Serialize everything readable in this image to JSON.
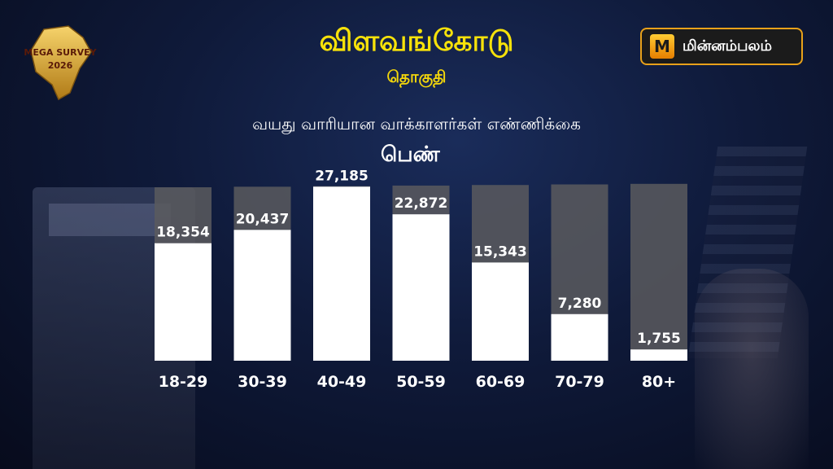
{
  "header": {
    "title": "விளவங்கோடு",
    "subtitle": "தொகுதி",
    "badge_text_line1": "MEGA SURVEY",
    "badge_text_line2": "2026"
  },
  "brand": {
    "name": "மின்னம்பலம்",
    "mark": "M"
  },
  "chart_data": {
    "type": "bar",
    "title": "வயது வாரியான வாக்காளர்கள் எண்ணிக்கை",
    "subtitle": "பெண்",
    "categories": [
      "18-29",
      "30-39",
      "40-49",
      "50-59",
      "60-69",
      "70-79",
      "80+"
    ],
    "values": [
      18354,
      20437,
      27185,
      22872,
      15343,
      7280,
      1755
    ],
    "value_labels": [
      "18,354",
      "20,437",
      "27,185",
      "22,872",
      "15,343",
      "7,280",
      "1,755"
    ],
    "ylim": [
      0,
      32000
    ],
    "bar_color": "#ffffff",
    "track_color": "#5a5a5e"
  }
}
